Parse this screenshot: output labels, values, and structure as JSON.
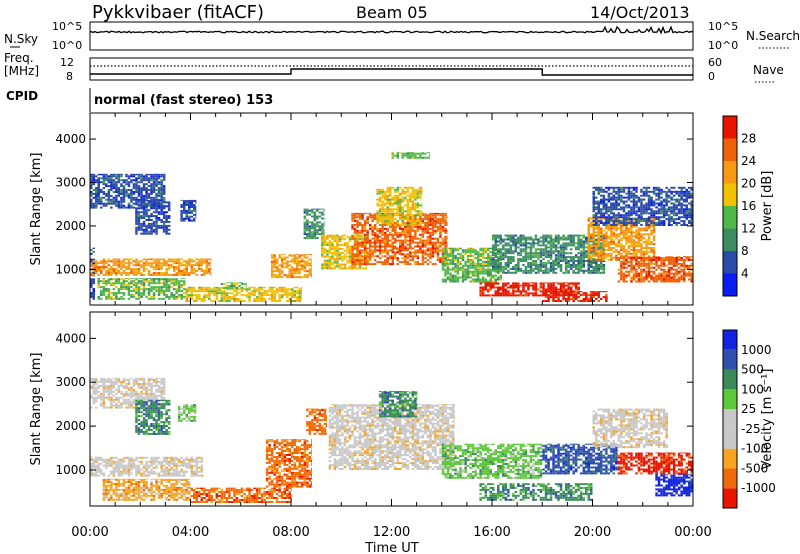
{
  "header": {
    "station": "Pykkvibaer (fitACF)",
    "beam": "Beam 05",
    "date": "14/Oct/2013"
  },
  "top_panels": {
    "nsky": {
      "label": "N.Sky",
      "ticks": [
        "10^5",
        "10^0"
      ]
    },
    "nsearch": {
      "label": "N.Search",
      "ticks": [
        "10^5",
        "10^0"
      ]
    },
    "freq": {
      "label_line1": "Freq.",
      "label_line2": "[MHz]",
      "ticks": [
        "12",
        "8"
      ]
    },
    "nave": {
      "label": "Nave",
      "ticks": [
        "60",
        "0"
      ]
    },
    "cpid": {
      "label": "CPID",
      "text": "normal (fast stereo) 153"
    }
  },
  "colors": {
    "power": [
      "#0a1cf0",
      "#2a49a8",
      "#3c8c64",
      "#52b848",
      "#f2c200",
      "#f59a12",
      "#f06008",
      "#e81400"
    ],
    "velocity": [
      "#e81400",
      "#f06a0a",
      "#f7a520",
      "#c8c8c8",
      "#c8c8c8",
      "#5ec83c",
      "#3a8a5a",
      "#3050b0",
      "#1224e0"
    ]
  },
  "chart_data": [
    {
      "type": "heatmap",
      "title": "Power",
      "ylabel": "Slant Range [km]",
      "xlabel": "Time UT",
      "x_ticks": [
        "00:00",
        "04:00",
        "08:00",
        "12:00",
        "16:00",
        "20:00",
        "00:00"
      ],
      "x_range_hours": [
        0,
        24
      ],
      "y_ticks": [
        1000,
        2000,
        3000,
        4000
      ],
      "ylim": [
        180,
        4600
      ],
      "colorbar": {
        "label": "Power [dB]",
        "ticks": [
          4,
          8,
          12,
          16,
          20,
          24,
          28
        ],
        "range": [
          0,
          32
        ]
      },
      "regions": [
        {
          "t0": 0.0,
          "t1": 0.2,
          "r0": 300,
          "r1": 1500,
          "level": 1
        },
        {
          "t0": 0.0,
          "t1": 4.8,
          "r0": 850,
          "r1": 1250,
          "level": 5
        },
        {
          "t0": 0.0,
          "t1": 3.0,
          "r0": 2400,
          "r1": 3200,
          "level": 1
        },
        {
          "t0": 0.3,
          "t1": 3.8,
          "r0": 300,
          "r1": 800,
          "level": 3
        },
        {
          "t0": 1.8,
          "t1": 3.2,
          "r0": 1800,
          "r1": 2600,
          "level": 1
        },
        {
          "t0": 3.6,
          "t1": 4.2,
          "r0": 2100,
          "r1": 2600,
          "level": 1
        },
        {
          "t0": 3.8,
          "t1": 8.4,
          "r0": 250,
          "r1": 600,
          "level": 4
        },
        {
          "t0": 5.2,
          "t1": 6.2,
          "r0": 550,
          "r1": 700,
          "level": 3
        },
        {
          "t0": 7.2,
          "t1": 8.8,
          "r0": 800,
          "r1": 1350,
          "level": 5
        },
        {
          "t0": 8.5,
          "t1": 9.3,
          "r0": 1700,
          "r1": 2400,
          "level": 2
        },
        {
          "t0": 9.2,
          "t1": 11.0,
          "r0": 1000,
          "r1": 1800,
          "level": 4
        },
        {
          "t0": 10.4,
          "t1": 14.2,
          "r0": 1100,
          "r1": 2300,
          "level": 6
        },
        {
          "t0": 11.4,
          "t1": 13.2,
          "r0": 2000,
          "r1": 2900,
          "level": 4
        },
        {
          "t0": 12.0,
          "t1": 13.5,
          "r0": 3550,
          "r1": 3700,
          "level": 3
        },
        {
          "t0": 14.0,
          "t1": 16.4,
          "r0": 700,
          "r1": 1500,
          "level": 3
        },
        {
          "t0": 15.5,
          "t1": 19.5,
          "r0": 380,
          "r1": 700,
          "level": 7
        },
        {
          "t0": 16.0,
          "t1": 20.5,
          "r0": 900,
          "r1": 1800,
          "level": 2
        },
        {
          "t0": 18.0,
          "t1": 20.6,
          "r0": 250,
          "r1": 500,
          "level": 7
        },
        {
          "t0": 19.8,
          "t1": 22.5,
          "r0": 1200,
          "r1": 2200,
          "level": 5
        },
        {
          "t0": 21.0,
          "t1": 24.0,
          "r0": 700,
          "r1": 1300,
          "level": 6
        },
        {
          "t0": 20.0,
          "t1": 24.0,
          "r0": 2000,
          "r1": 2900,
          "level": 1
        }
      ]
    },
    {
      "type": "heatmap",
      "title": "Velocity",
      "ylabel": "Slant Range [km]",
      "xlabel": "Time UT",
      "x_ticks": [
        "00:00",
        "04:00",
        "08:00",
        "12:00",
        "16:00",
        "20:00",
        "00:00"
      ],
      "x_range_hours": [
        0,
        24
      ],
      "y_ticks": [
        1000,
        2000,
        3000,
        4000
      ],
      "ylim": [
        180,
        4600
      ],
      "colorbar": {
        "label": "Velocity [m s⁻¹]",
        "ticks": [
          "1000",
          "500",
          "100",
          "25",
          "-25",
          "-100",
          "-500",
          "-1000"
        ]
      },
      "regions": [
        {
          "t0": 0.0,
          "t1": 4.5,
          "r0": 850,
          "r1": 1300,
          "level": 3
        },
        {
          "t0": 0.0,
          "t1": 3.0,
          "r0": 2400,
          "r1": 3100,
          "level": 3
        },
        {
          "t0": 0.5,
          "t1": 4.0,
          "r0": 300,
          "r1": 800,
          "level": 2
        },
        {
          "t0": 1.8,
          "t1": 3.2,
          "r0": 1800,
          "r1": 2600,
          "level": 6
        },
        {
          "t0": 3.5,
          "t1": 4.2,
          "r0": 2100,
          "r1": 2500,
          "level": 5
        },
        {
          "t0": 4.0,
          "t1": 8.0,
          "r0": 250,
          "r1": 600,
          "level": 1
        },
        {
          "t0": 7.0,
          "t1": 8.8,
          "r0": 600,
          "r1": 1700,
          "level": 1
        },
        {
          "t0": 8.6,
          "t1": 9.4,
          "r0": 1800,
          "r1": 2400,
          "level": 1
        },
        {
          "t0": 9.5,
          "t1": 14.5,
          "r0": 1000,
          "r1": 2500,
          "level": 3
        },
        {
          "t0": 11.5,
          "t1": 13.0,
          "r0": 2200,
          "r1": 2800,
          "level": 6
        },
        {
          "t0": 14.0,
          "t1": 18.0,
          "r0": 800,
          "r1": 1600,
          "level": 5
        },
        {
          "t0": 15.5,
          "t1": 20.0,
          "r0": 300,
          "r1": 700,
          "level": 6
        },
        {
          "t0": 18.0,
          "t1": 21.0,
          "r0": 900,
          "r1": 1600,
          "level": 7
        },
        {
          "t0": 20.0,
          "t1": 23.0,
          "r0": 1500,
          "r1": 2400,
          "level": 3
        },
        {
          "t0": 21.0,
          "t1": 24.0,
          "r0": 900,
          "r1": 1400,
          "level": 0
        },
        {
          "t0": 22.5,
          "t1": 24.0,
          "r0": 400,
          "r1": 900,
          "level": 8
        }
      ]
    }
  ]
}
